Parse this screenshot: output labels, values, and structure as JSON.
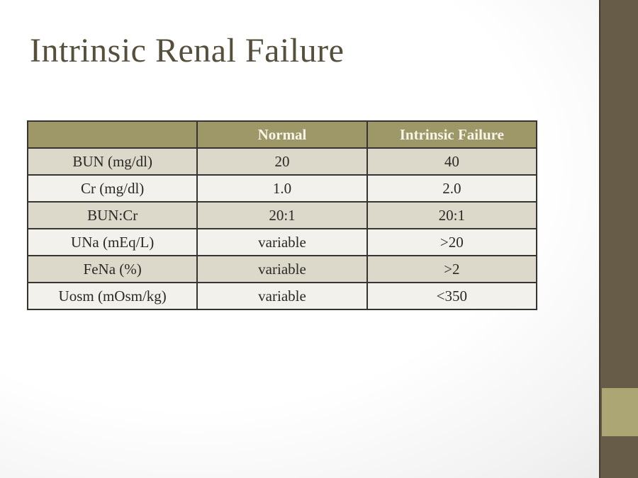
{
  "slide": {
    "title": "Intrinsic Renal Failure"
  },
  "table": {
    "headers": {
      "metric": "",
      "normal": "Normal",
      "intrinsic": "Intrinsic Failure"
    },
    "rows": [
      {
        "label": "BUN (mg/dl)",
        "normal": "20",
        "intrinsic": "40"
      },
      {
        "label": "Cr (mg/dl)",
        "normal": "1.0",
        "intrinsic": "2.0"
      },
      {
        "label": "BUN:Cr",
        "normal": "20:1",
        "intrinsic": "20:1"
      },
      {
        "label": "UNa (mEq/L)",
        "normal": "variable",
        "intrinsic": ">20"
      },
      {
        "label": "FeNa (%)",
        "normal": "variable",
        "intrinsic": ">2"
      },
      {
        "label": "Uosm (mOsm/kg)",
        "normal": "variable",
        "intrinsic": "<350"
      }
    ]
  },
  "colors": {
    "header_bg": "#9e9868",
    "header_text": "#f7f4e9",
    "row_dark": "#dcd9cb",
    "row_light": "#f2f1eb",
    "table_border": "#363430",
    "title_text": "#554f3c",
    "sidebar": "#665c47",
    "sidebar_accent": "#aca674",
    "slide_background": "#f7f7f7"
  }
}
